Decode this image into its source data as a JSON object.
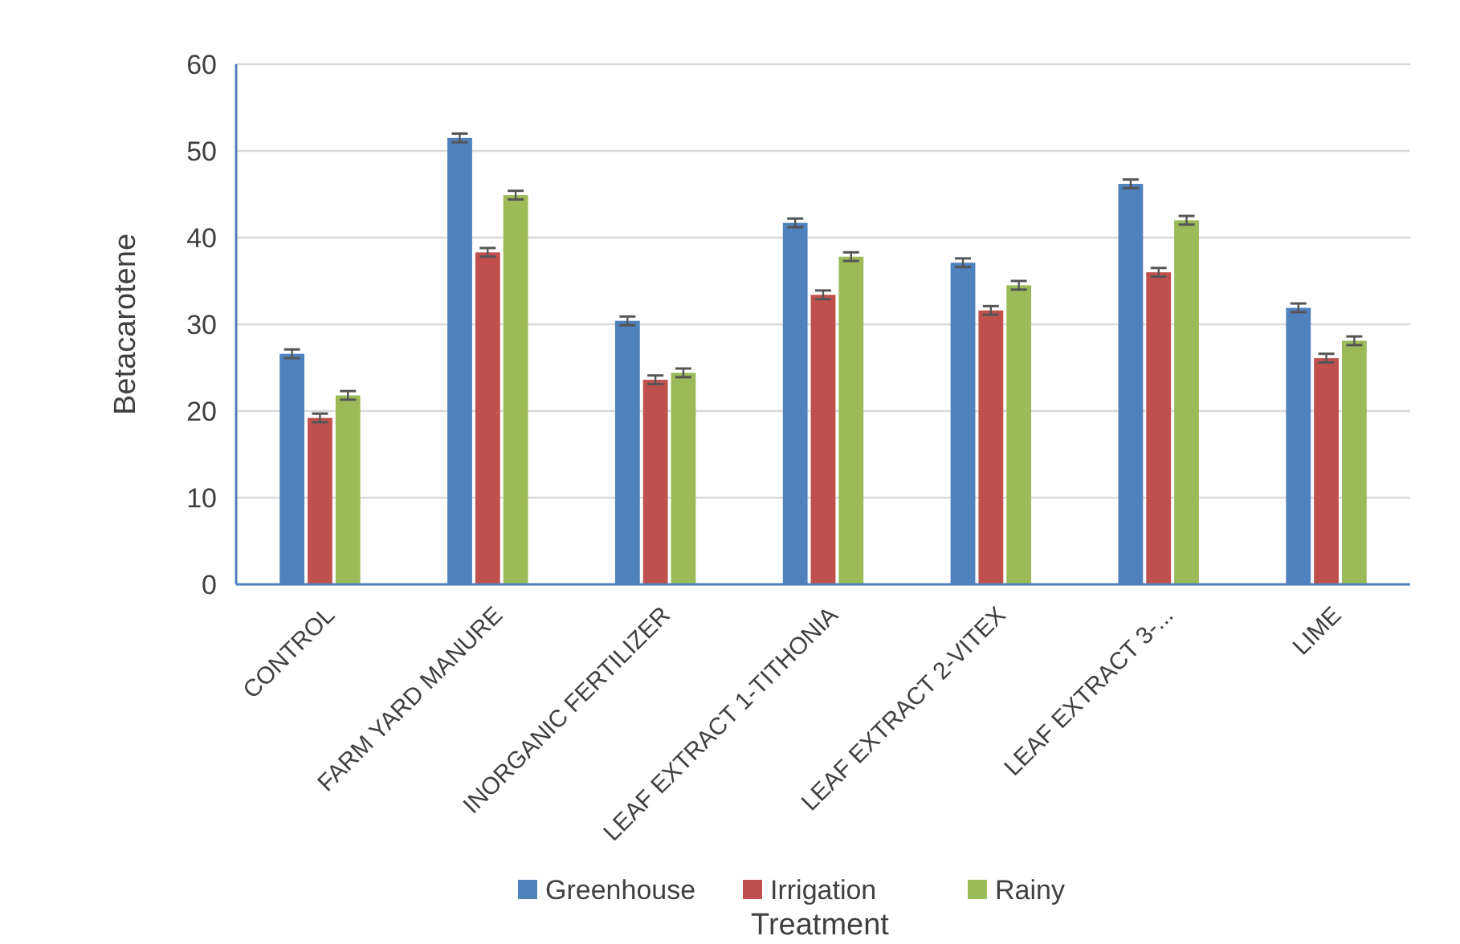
{
  "chart_data": {
    "type": "bar",
    "xlabel": "Treatment",
    "ylabel": "Betacarotene",
    "categories": [
      "CONTROL",
      "FARM YARD MANURE",
      "INORGANIC FERTILIZER",
      "LEAF EXTRACT 1-TITHONIA",
      "LEAF EXTRACT 2-VITEX",
      "LEAF EXTRACT 3-...",
      "LIME"
    ],
    "series": [
      {
        "name": "Greenhouse",
        "color": "#4f81bd",
        "values": [
          26.6,
          51.5,
          30.4,
          41.7,
          37.1,
          46.2,
          31.9
        ],
        "errors": [
          0.5,
          0.5,
          0.5,
          0.5,
          0.5,
          0.5,
          0.5
        ]
      },
      {
        "name": "Irrigation",
        "color": "#c0504d",
        "values": [
          19.2,
          38.3,
          23.6,
          33.4,
          31.6,
          36.0,
          26.1
        ],
        "errors": [
          0.5,
          0.5,
          0.5,
          0.5,
          0.5,
          0.5,
          0.5
        ]
      },
      {
        "name": "Rainy",
        "color": "#9bbb59",
        "values": [
          21.8,
          44.9,
          24.4,
          37.8,
          34.5,
          42.0,
          28.1
        ],
        "errors": [
          0.5,
          0.5,
          0.5,
          0.5,
          0.5,
          0.5,
          0.5
        ]
      }
    ],
    "ylim": [
      0,
      60
    ],
    "yticks": [
      0,
      10,
      20,
      30,
      40,
      50,
      60
    ],
    "grid": "y",
    "legend": "bottom"
  }
}
